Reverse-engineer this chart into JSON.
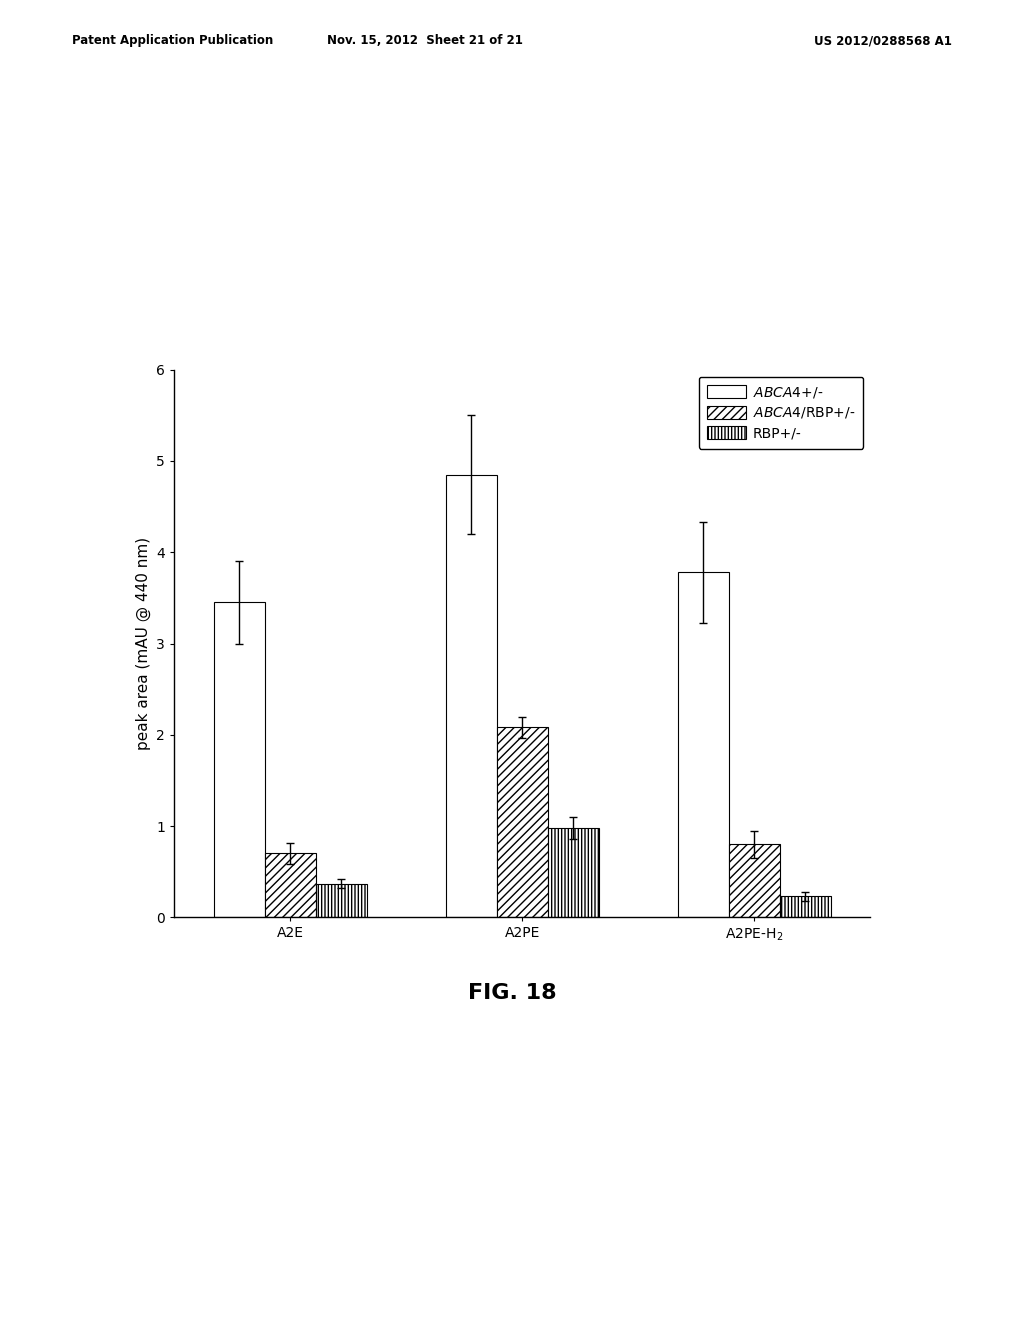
{
  "categories": [
    "A2E",
    "A2PE",
    "A2PE-H₂"
  ],
  "series": [
    {
      "label": "ABCA4+/-",
      "values": [
        3.45,
        4.85,
        3.78
      ],
      "errors": [
        0.45,
        0.65,
        0.55
      ],
      "hatch": "",
      "facecolor": "white",
      "edgecolor": "black"
    },
    {
      "label": "ABCA4/RBP+/-",
      "values": [
        0.7,
        2.08,
        0.8
      ],
      "errors": [
        0.12,
        0.12,
        0.15
      ],
      "hatch": "////",
      "facecolor": "white",
      "edgecolor": "black"
    },
    {
      "label": "RBP+/-",
      "values": [
        0.37,
        0.98,
        0.23
      ],
      "errors": [
        0.05,
        0.12,
        0.05
      ],
      "hatch": "|||||",
      "facecolor": "white",
      "edgecolor": "black"
    }
  ],
  "ylabel": "peak area (mAU @ 440 nm)",
  "ylim": [
    0,
    6
  ],
  "yticks": [
    0,
    1,
    2,
    3,
    4,
    5,
    6
  ],
  "bar_width": 0.22,
  "figure_caption": "FIG. 18",
  "header_left": "Patent Application Publication",
  "header_center": "Nov. 15, 2012  Sheet 21 of 21",
  "header_right": "US 2012/0288568 A1",
  "background_color": "#ffffff",
  "legend_fontsize": 10,
  "axis_fontsize": 11,
  "tick_fontsize": 10,
  "caption_fontsize": 16
}
